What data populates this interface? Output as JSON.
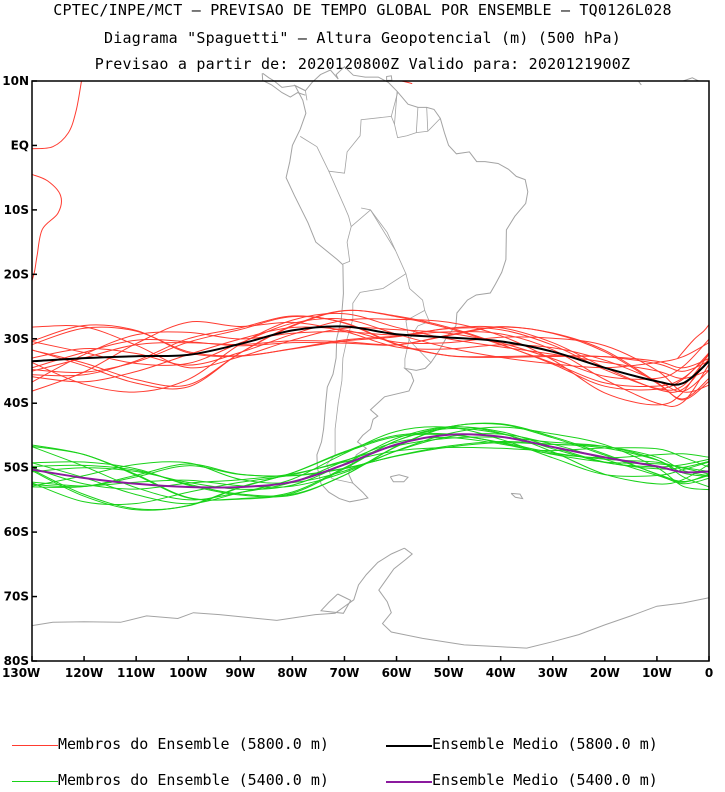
{
  "header": {
    "line1": "CPTEC/INPE/MCT – PREVISAO DE TEMPO GLOBAL POR ENSEMBLE – TQ0126L028",
    "line2": "Diagrama \"Spaguetti\" – Altura Geopotencial (m) (500 hPa)",
    "line3": "Previsao a partir de: 2020120800Z  Valido para: 2020121900Z"
  },
  "axes": {
    "lat_labels": [
      "10N",
      "EQ",
      "10S",
      "20S",
      "30S",
      "40S",
      "50S",
      "60S",
      "70S",
      "80S"
    ],
    "lon_labels": [
      "130W",
      "120W",
      "110W",
      "100W",
      "90W",
      "80W",
      "70W",
      "60W",
      "50W",
      "40W",
      "30W",
      "20W",
      "10W",
      "0"
    ],
    "lat_range": [
      10,
      -80
    ],
    "lon_range": [
      -130,
      0
    ]
  },
  "contours": {
    "level_5800": 5800.0,
    "level_5400": 5400.0,
    "mean_5800_lat": [
      -33.5,
      -33.0,
      -32.7,
      -32.5,
      -30.8,
      -28.7,
      -28.1,
      -29.3,
      -29.8,
      -30.4,
      -32.0,
      -34.5,
      -36.6,
      -36.9,
      -33.5
    ],
    "mean_5400_lat": [
      -50.3,
      -51.6,
      -52.5,
      -53.0,
      -53.0,
      -52.2,
      -49.5,
      -46.4,
      -44.9,
      -45.2,
      -46.8,
      -48.4,
      -49.8,
      -50.7,
      -50.6
    ],
    "mean_lons": [
      -130,
      -120,
      -110,
      -100,
      -90,
      -80,
      -70,
      -60,
      -50,
      -40,
      -30,
      -20,
      -10,
      -5,
      0
    ]
  },
  "colors": {
    "members_5800": "#ff3b30",
    "members_5400": "#19d219",
    "mean_5800": "#000000",
    "mean_5400": "#8b1a9e",
    "coast": "#a3a3a3"
  },
  "legend": {
    "members_5800": "Membros do Ensemble (5800.0 m)",
    "mean_5800": "Ensemble Medio (5800.0 m)",
    "members_5400": "Membros do Ensemble (5400.0 m)",
    "mean_5400": "Ensemble Medio (5400.0 m)"
  }
}
